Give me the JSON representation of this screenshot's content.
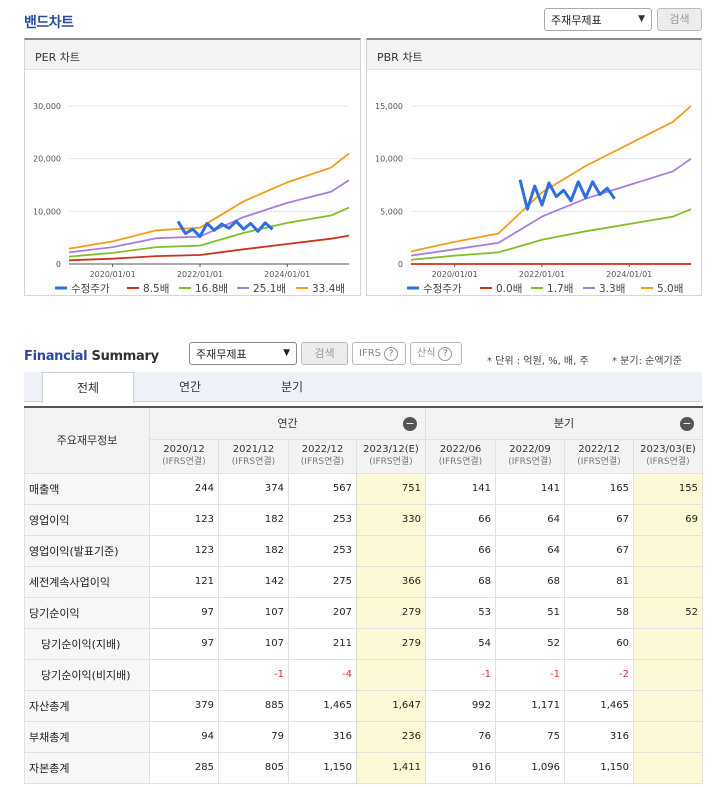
{
  "band": {
    "title": "밴드차트",
    "select_value": "주재무제표",
    "search_label": "검색"
  },
  "per_chart": {
    "title": "PER 차트",
    "yticks": [
      "30,000",
      "20,000",
      "10,000",
      "0"
    ],
    "xticks": [
      "2020/01/01",
      "2022/01/01",
      "2024/01/01"
    ],
    "legend": [
      "수정주가",
      "8.5배",
      "16.8배",
      "25.1배",
      "33.4배"
    ]
  },
  "pbr_chart": {
    "title": "PBR 차트",
    "yticks": [
      "15,000",
      "10,000",
      "5,000",
      "0"
    ],
    "xticks": [
      "2020/01/01",
      "2022/01/01",
      "2024/01/01"
    ],
    "legend": [
      "수정주가",
      "0.0배",
      "1.7배",
      "3.3배",
      "5.0배"
    ]
  },
  "colors": {
    "price": "#2f6fdc",
    "band1": "#c9341a",
    "band2": "#7fbf27",
    "band3": "#a57ee0",
    "band4": "#f59c1a",
    "accent": "#2b4a9f",
    "estimate_bg": "#fcf9d6",
    "negative": "#e03030"
  },
  "chart_data": [
    {
      "type": "line",
      "ylim": [
        0,
        30000
      ],
      "xlim": [
        "2019/01/01",
        "2025/06/01"
      ],
      "series": [
        {
          "name": "8.5배",
          "x": [
            "2019/01/01",
            "2020/01/01",
            "2021/01/01",
            "2022/01/01",
            "2023/01/01",
            "2024/01/01",
            "2025/01/01",
            "2025/06/01"
          ],
          "y": [
            700,
            1000,
            1500,
            1700,
            2800,
            3800,
            4800,
            5400
          ]
        },
        {
          "name": "16.8배",
          "x": [
            "2019/01/01",
            "2020/01/01",
            "2021/01/01",
            "2022/01/01",
            "2023/01/01",
            "2024/01/01",
            "2025/01/01",
            "2025/06/01"
          ],
          "y": [
            1400,
            2100,
            3200,
            3500,
            5900,
            7800,
            9200,
            10700
          ]
        },
        {
          "name": "25.1배",
          "x": [
            "2019/01/01",
            "2020/01/01",
            "2021/01/01",
            "2022/01/01",
            "2023/01/01",
            "2024/01/01",
            "2025/01/01",
            "2025/06/01"
          ],
          "y": [
            2200,
            3200,
            4900,
            5200,
            8900,
            11600,
            13700,
            15900
          ]
        },
        {
          "name": "33.4배",
          "x": [
            "2019/01/01",
            "2020/01/01",
            "2021/01/01",
            "2022/01/01",
            "2023/01/01",
            "2024/01/01",
            "2025/01/01",
            "2025/06/01"
          ],
          "y": [
            2900,
            4300,
            6400,
            6900,
            11900,
            15500,
            18300,
            21000
          ]
        },
        {
          "name": "수정주가",
          "x": [
            "2021/07/01",
            "2021/09/01",
            "2021/11/01",
            "2022/01/01",
            "2022/03/01",
            "2022/05/01",
            "2022/07/01",
            "2022/09/01",
            "2022/11/01",
            "2023/01/01",
            "2023/03/01",
            "2023/05/01",
            "2023/07/01",
            "2023/09/01"
          ],
          "y": [
            8100,
            5800,
            6600,
            5200,
            7700,
            6400,
            7600,
            6800,
            8100,
            6600,
            7700,
            6200,
            7800,
            6600
          ]
        }
      ]
    },
    {
      "type": "line",
      "ylim": [
        0,
        15000
      ],
      "xlim": [
        "2019/01/01",
        "2025/06/01"
      ],
      "series": [
        {
          "name": "0.0배",
          "x": [
            "2019/01/01",
            "2025/06/01"
          ],
          "y": [
            0,
            0
          ]
        },
        {
          "name": "1.7배",
          "x": [
            "2019/01/01",
            "2020/01/01",
            "2021/01/01",
            "2022/01/01",
            "2023/01/01",
            "2024/01/01",
            "2025/01/01",
            "2025/06/01"
          ],
          "y": [
            400,
            800,
            1100,
            2300,
            3100,
            3800,
            4500,
            5200
          ]
        },
        {
          "name": "3.3배",
          "x": [
            "2019/01/01",
            "2020/01/01",
            "2021/01/01",
            "2022/01/01",
            "2023/01/01",
            "2024/01/01",
            "2025/01/01",
            "2025/06/01"
          ],
          "y": [
            800,
            1400,
            2000,
            4500,
            6200,
            7500,
            8800,
            10000
          ]
        },
        {
          "name": "5.0배",
          "x": [
            "2019/01/01",
            "2020/01/01",
            "2021/01/01",
            "2022/01/01",
            "2023/01/01",
            "2024/01/01",
            "2025/01/01",
            "2025/06/01"
          ],
          "y": [
            1200,
            2100,
            2900,
            6800,
            9300,
            11400,
            13500,
            15000
          ]
        },
        {
          "name": "수정주가",
          "x": [
            "2021/07/01",
            "2021/09/01",
            "2021/11/01",
            "2022/01/01",
            "2022/03/01",
            "2022/05/01",
            "2022/07/01",
            "2022/09/01",
            "2022/11/01",
            "2023/01/01",
            "2023/03/01",
            "2023/05/01",
            "2023/07/01",
            "2023/09/01"
          ],
          "y": [
            8000,
            5200,
            7400,
            5600,
            7700,
            6400,
            7000,
            6000,
            7800,
            6300,
            7800,
            6600,
            7200,
            6200
          ]
        }
      ]
    }
  ],
  "summary": {
    "title_a": "Financial",
    "title_b": " Summary",
    "select_value": "주재무제표",
    "search_label": "검색",
    "ifrs_label": "IFRS",
    "formula_label": "산식",
    "unit_note": "* 단위 : 억원, %, 배, 주",
    "quarter_note": "* 분기: 순액기준",
    "tabs": [
      "전체",
      "연간",
      "분기"
    ],
    "corner_label": "주요재무정보",
    "group_annual": "연간",
    "group_quarter": "분기",
    "columns": [
      {
        "period": "2020/12",
        "basis": "(IFRS연결)"
      },
      {
        "period": "2021/12",
        "basis": "(IFRS연결)"
      },
      {
        "period": "2022/12",
        "basis": "(IFRS연결)"
      },
      {
        "period": "2023/12(E)",
        "basis": "(IFRS연결)"
      },
      {
        "period": "2022/06",
        "basis": "(IFRS연결)"
      },
      {
        "period": "2022/09",
        "basis": "(IFRS연결)"
      },
      {
        "period": "2022/12",
        "basis": "(IFRS연결)"
      },
      {
        "period": "2023/03(E)",
        "basis": "(IFRS연결)"
      }
    ],
    "rows": [
      {
        "label": "매출액",
        "values": [
          "244",
          "374",
          "567",
          "751",
          "141",
          "141",
          "165",
          "155"
        ]
      },
      {
        "label": "영업이익",
        "values": [
          "123",
          "182",
          "253",
          "330",
          "66",
          "64",
          "67",
          "69"
        ]
      },
      {
        "label": "영업이익(발표기준)",
        "values": [
          "123",
          "182",
          "253",
          "",
          "66",
          "64",
          "67",
          ""
        ]
      },
      {
        "label": "세전계속사업이익",
        "values": [
          "121",
          "142",
          "275",
          "366",
          "68",
          "68",
          "81",
          ""
        ]
      },
      {
        "label": "당기순이익",
        "values": [
          "97",
          "107",
          "207",
          "279",
          "53",
          "51",
          "58",
          "52"
        ]
      },
      {
        "label": "당기순이익(지배)",
        "values": [
          "97",
          "107",
          "211",
          "279",
          "54",
          "52",
          "60",
          ""
        ]
      },
      {
        "label": "당기순이익(비지배)",
        "values": [
          "",
          "-1",
          "-4",
          "",
          "-1",
          "-1",
          "-2",
          ""
        ]
      },
      {
        "label": "자산총계",
        "values": [
          "379",
          "885",
          "1,465",
          "1,647",
          "992",
          "1,171",
          "1,465",
          ""
        ]
      },
      {
        "label": "부채총계",
        "values": [
          "94",
          "79",
          "316",
          "236",
          "76",
          "75",
          "316",
          ""
        ]
      },
      {
        "label": "자본총계",
        "values": [
          "285",
          "805",
          "1,150",
          "1,411",
          "916",
          "1,096",
          "1,150",
          ""
        ]
      }
    ]
  }
}
